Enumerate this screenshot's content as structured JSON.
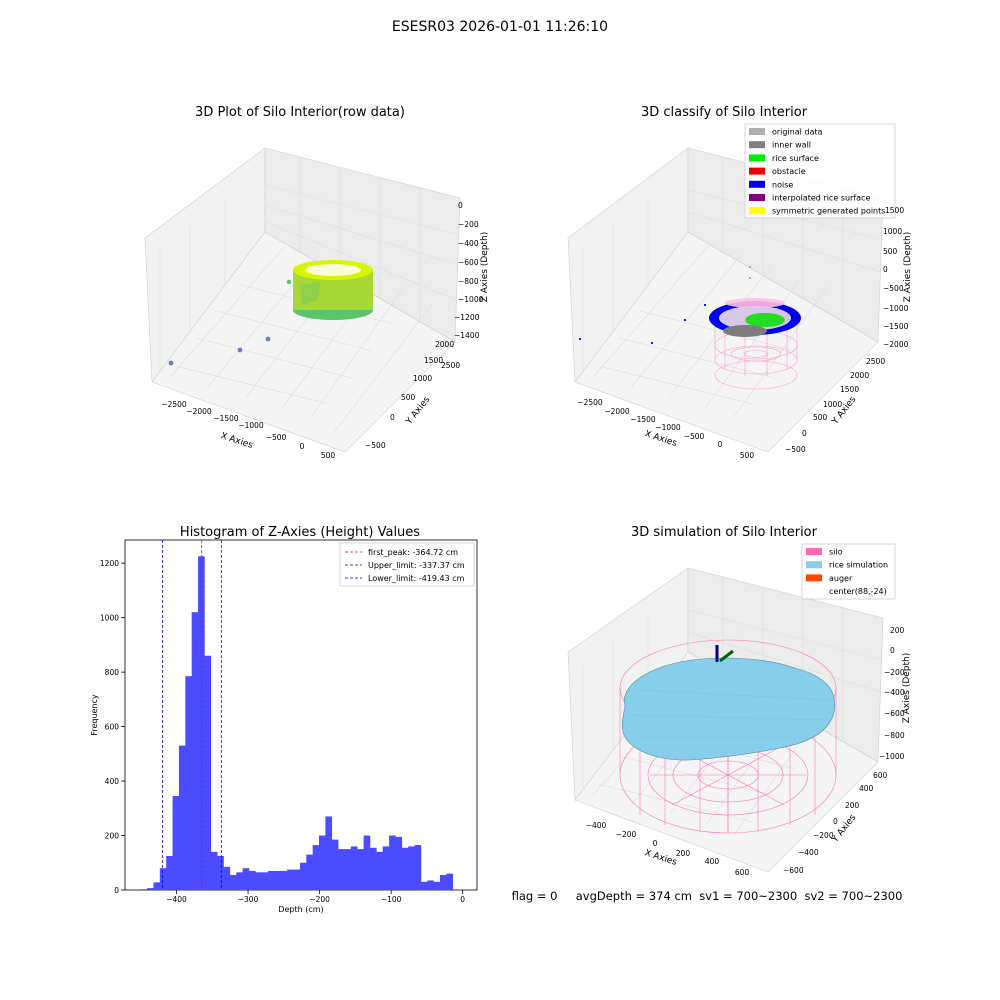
{
  "figure": {
    "suptitle": "ESESR03 2026-01-01 11:26:10",
    "footer": "flag = 0     avgDepth = 374 cm  sv1 = 700~2300  sv2 = 700~2300"
  },
  "colors": {
    "grid": "#d9d9d9",
    "pane": "#f2f2f2",
    "hist": "#4b4bff",
    "first_peak": "#ff0000",
    "limit": "#0000dd",
    "silo": "#ff69b4",
    "rice": "#87ceeb",
    "auger": "#ff4500",
    "raw_lo": "#3cb371",
    "raw_hi": "#d7f500"
  },
  "plots": {
    "raw": {
      "title": "3D Plot of Silo Interior(row data)",
      "xlabel": "X Axies",
      "ylabel": "Y Axies",
      "zlabel": "Z Axies (Depth)",
      "xticks": [
        "−2500",
        "−2000",
        "−1500",
        "−1000",
        "−500",
        "0",
        "500"
      ],
      "yticks": [
        "−500",
        "0",
        "500",
        "1000",
        "1500",
        "2000",
        "2500"
      ],
      "zticks": [
        "0",
        "−200",
        "−400",
        "−600",
        "−800",
        "−1000",
        "−1200",
        "−1400"
      ]
    },
    "classify": {
      "title": "3D classify of Silo Interior",
      "xlabel": "X Axies",
      "ylabel": "Y Axies",
      "zlabel": "Z Axies (Depth)",
      "xticks": [
        "−2500",
        "−2000",
        "−1500",
        "−1000",
        "−500",
        "0",
        "500"
      ],
      "yticks": [
        "−500",
        "0",
        "500",
        "1000",
        "1500",
        "2000",
        "2500"
      ],
      "zticks": [
        "1000",
        "500",
        "0",
        "−500",
        "−1000",
        "−1500",
        "−2000"
      ],
      "zticks_hidden_top": [
        "1500"
      ],
      "legend": [
        {
          "label": "original data",
          "color": "#b0b0b0"
        },
        {
          "label": "inner wall",
          "color": "#808080"
        },
        {
          "label": "rice surface",
          "color": "#00ee00"
        },
        {
          "label": "obstacle",
          "color": "#ee0000"
        },
        {
          "label": "noise",
          "color": "#0000ee"
        },
        {
          "label": "interpolated rice surface",
          "color": "#800080"
        },
        {
          "label": "symmetric generated points",
          "color": "#ffff00"
        }
      ]
    },
    "simulation": {
      "title": "3D simulation of Silo Interior",
      "xlabel": "X Axies",
      "ylabel": "Y Axies",
      "zlabel": "Z Axies (Depth)",
      "xticks": [
        "−400",
        "−200",
        "0",
        "200",
        "400",
        "600"
      ],
      "yticks": [
        "−600",
        "−400",
        "−200",
        "0",
        "200",
        "400",
        "600"
      ],
      "zticks": [
        "200",
        "0",
        "−200",
        "−400",
        "−600",
        "−800",
        "−1000"
      ],
      "legend": [
        {
          "label": "silo",
          "color": "#ff69b4"
        },
        {
          "label": "rice simulation",
          "color": "#87ceeb"
        },
        {
          "label": "auger",
          "color": "#ff4500"
        },
        {
          "label": "center(88,-24)",
          "color": ""
        }
      ]
    }
  },
  "chart_data": [
    {
      "type": "bar",
      "title": "Histogram of Z-Axies (Height) Values",
      "xlabel": "Depth (cm)",
      "ylabel": "Frequency",
      "xlim": [
        -472,
        20
      ],
      "ylim": [
        0,
        1285
      ],
      "xticks": [
        -400,
        -300,
        -200,
        -100,
        0
      ],
      "xtick_labels": [
        "−400",
        "−300",
        "−200",
        "−100",
        "0"
      ],
      "yticks": [
        0,
        200,
        400,
        600,
        800,
        1000,
        1200
      ],
      "bin_edges_start": -450,
      "bin_width": 8.9,
      "values": [
        3,
        7,
        28,
        80,
        125,
        345,
        530,
        785,
        1020,
        1225,
        860,
        140,
        125,
        85,
        55,
        65,
        80,
        70,
        65,
        65,
        70,
        70,
        70,
        75,
        75,
        100,
        130,
        165,
        200,
        270,
        185,
        150,
        150,
        160,
        150,
        200,
        155,
        140,
        160,
        200,
        195,
        155,
        160,
        165,
        30,
        35,
        30,
        55,
        60
      ],
      "lines": [
        {
          "label": "first_peak: -364.72 cm",
          "x": -364.72,
          "color": "#ff0000"
        },
        {
          "label": "Upper_limit: -337.37 cm",
          "x": -337.37,
          "color": "#0000dd"
        },
        {
          "label": "Lower_limit: -419.43 cm",
          "x": -419.43,
          "color": "#0000dd"
        }
      ],
      "legend_position": "top-right",
      "grid": false
    }
  ]
}
